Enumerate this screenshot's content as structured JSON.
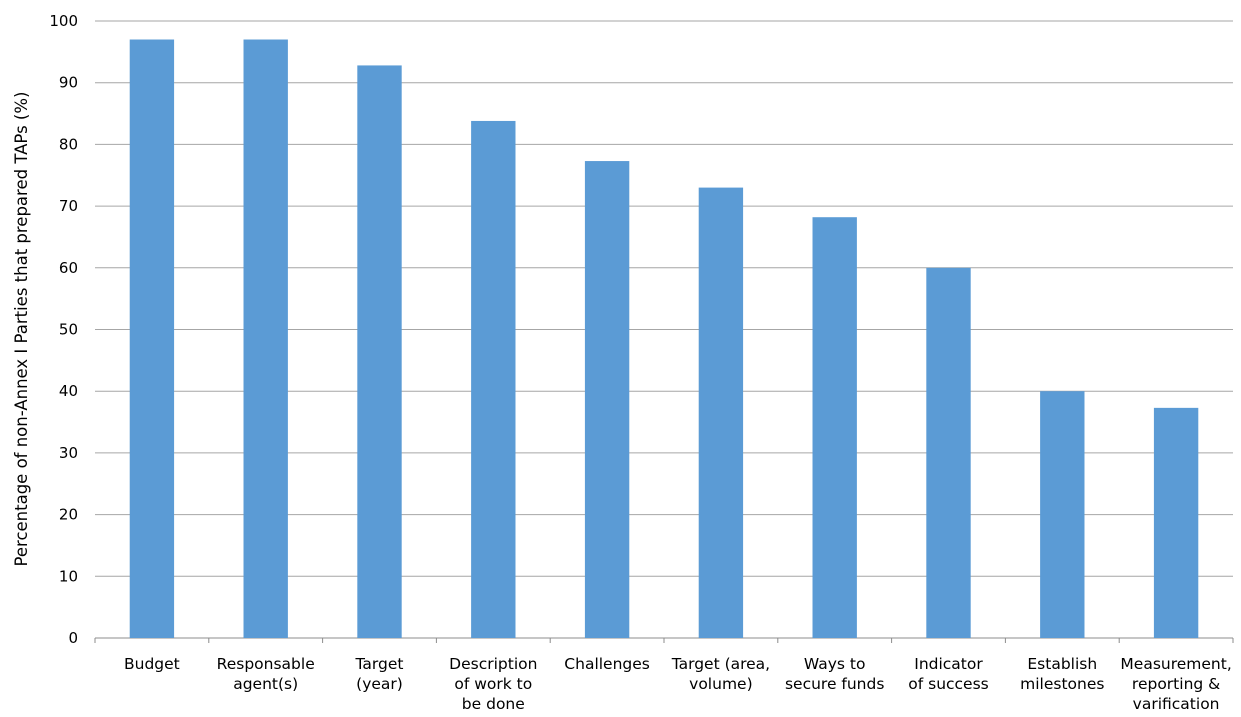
{
  "chart_data": {
    "type": "bar",
    "ylabel": "Percentage of non-Annex I Parties that prepared TAPs (%)",
    "xlabel": "",
    "ylim": [
      0,
      100
    ],
    "ytick_step": 10,
    "grid": true,
    "bar_color": "#5b9bd5",
    "categories": [
      "Budget",
      "Responsable agent(s)",
      "Target (year)",
      "Description of work to be done",
      "Challenges",
      "Target (area, volume)",
      "Ways to secure funds",
      "Indicator of success",
      "Establish milestones",
      "Measurement, reporting & varification"
    ],
    "category_lines": [
      [
        "Budget"
      ],
      [
        "Responsable",
        "agent(s)"
      ],
      [
        "Target",
        "(year)"
      ],
      [
        "Description",
        "of work to",
        "be done"
      ],
      [
        "Challenges"
      ],
      [
        "Target (area,",
        "volume)"
      ],
      [
        "Ways to",
        "secure funds"
      ],
      [
        "Indicator",
        "of success"
      ],
      [
        "Establish",
        "milestones"
      ],
      [
        "Measurement,",
        "reporting &",
        "varification"
      ]
    ],
    "values": [
      97,
      97,
      92.8,
      83.8,
      77.3,
      73,
      68.2,
      60,
      40,
      37.3
    ]
  }
}
